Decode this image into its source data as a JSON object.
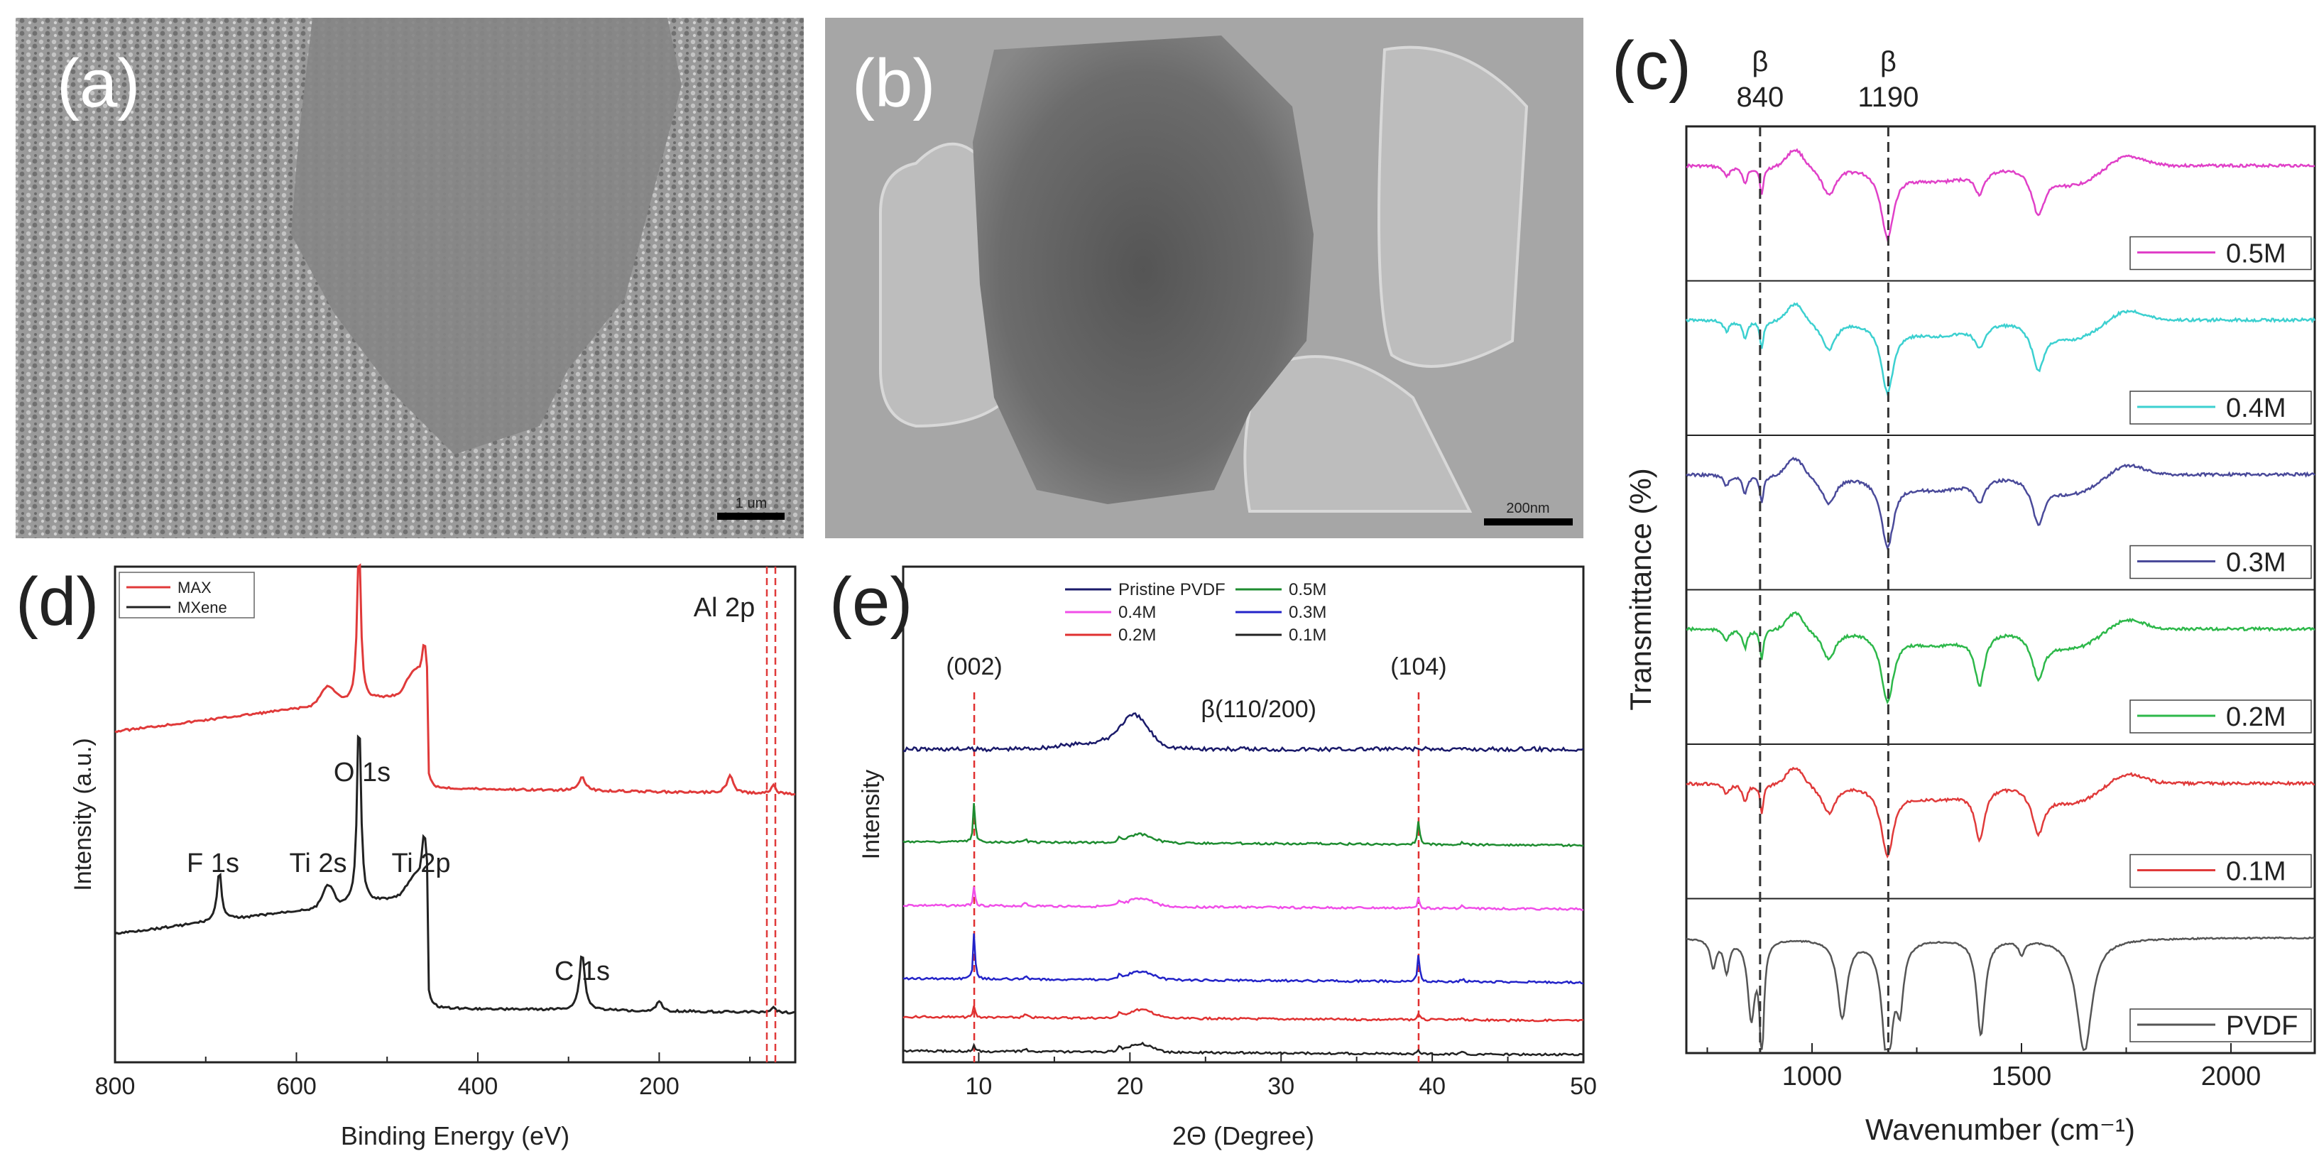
{
  "panels": {
    "a": {
      "label": "(a)",
      "scale_bar": "1 um"
    },
    "b": {
      "label": "(b)",
      "scale_bar": "200nm"
    }
  },
  "colors": {
    "magenta": "#e040c8",
    "cyan": "#3cd0d0",
    "navy": "#4a4a9a",
    "green": "#2db84a",
    "red": "#e03a3a",
    "black": "#222222",
    "blue": "#2323c8",
    "pink": "#f04ee8",
    "darkgreen": "#1e8c30",
    "purple": "#5a5aff",
    "salmon": "#e05a5a"
  },
  "chart_data": [
    {
      "panel": "(c)",
      "type": "line",
      "xlabel": "Wavenumber (cm⁻¹)",
      "ylabel": "Transmittance (%)",
      "xlim": [
        700,
        2200
      ],
      "xticks": [
        1000,
        1500,
        2000
      ],
      "markers": [
        {
          "label": "β",
          "x": 840,
          "x_label": "840"
        },
        {
          "label": "β",
          "x": 1190,
          "x_label": "1190"
        }
      ],
      "series": [
        {
          "name": "0.5M",
          "color": "#e040c8"
        },
        {
          "name": "0.4M",
          "color": "#3cd0d0"
        },
        {
          "name": "0.3M",
          "color": "#4a4a9a"
        },
        {
          "name": "0.2M",
          "color": "#2db84a"
        },
        {
          "name": "0.1M",
          "color": "#e03a3a"
        },
        {
          "name": "PVDF",
          "color": "#555555"
        }
      ]
    },
    {
      "panel": "(d)",
      "type": "line",
      "xlabel": "Binding Energy (eV)",
      "ylabel": "Intensity (a.u.)",
      "xlim": [
        800,
        50
      ],
      "xticks": [
        800,
        600,
        400,
        200
      ],
      "legend": [
        "MAX",
        "MXene"
      ],
      "series": [
        {
          "name": "MAX",
          "color": "#e03a3a"
        },
        {
          "name": "MXene",
          "color": "#222222"
        }
      ],
      "annotations": [
        {
          "text": "F 1s",
          "x": 685
        },
        {
          "text": "Ti 2s",
          "x": 565
        },
        {
          "text": "O 1s",
          "x": 531
        },
        {
          "text": "Ti 2p",
          "x": 459
        },
        {
          "text": "C 1s",
          "x": 285
        },
        {
          "text": "Al 2p",
          "x": 74
        }
      ]
    },
    {
      "panel": "(e)",
      "type": "line",
      "xlabel": "2Θ (Degree)",
      "ylabel": "Intensity",
      "xlim": [
        5,
        50
      ],
      "xticks": [
        10,
        20,
        30,
        40,
        50
      ],
      "legend": [
        "Pristine PVDF",
        "0.5M",
        "0.4M",
        "0.3M",
        "0.2M",
        "0.1M"
      ],
      "series": [
        {
          "name": "Pristine PVDF",
          "color": "#1a1a6a"
        },
        {
          "name": "0.5M",
          "color": "#1e8c30"
        },
        {
          "name": "0.4M",
          "color": "#f04ee8"
        },
        {
          "name": "0.3M",
          "color": "#2323c8"
        },
        {
          "name": "0.2M",
          "color": "#e03030"
        },
        {
          "name": "0.1M",
          "color": "#222222"
        }
      ],
      "peaks": [
        {
          "label": "(002)",
          "x": 9.7
        },
        {
          "label": "β(110/200)",
          "x": 20.3
        },
        {
          "label": "(104)",
          "x": 39.1
        }
      ]
    }
  ]
}
